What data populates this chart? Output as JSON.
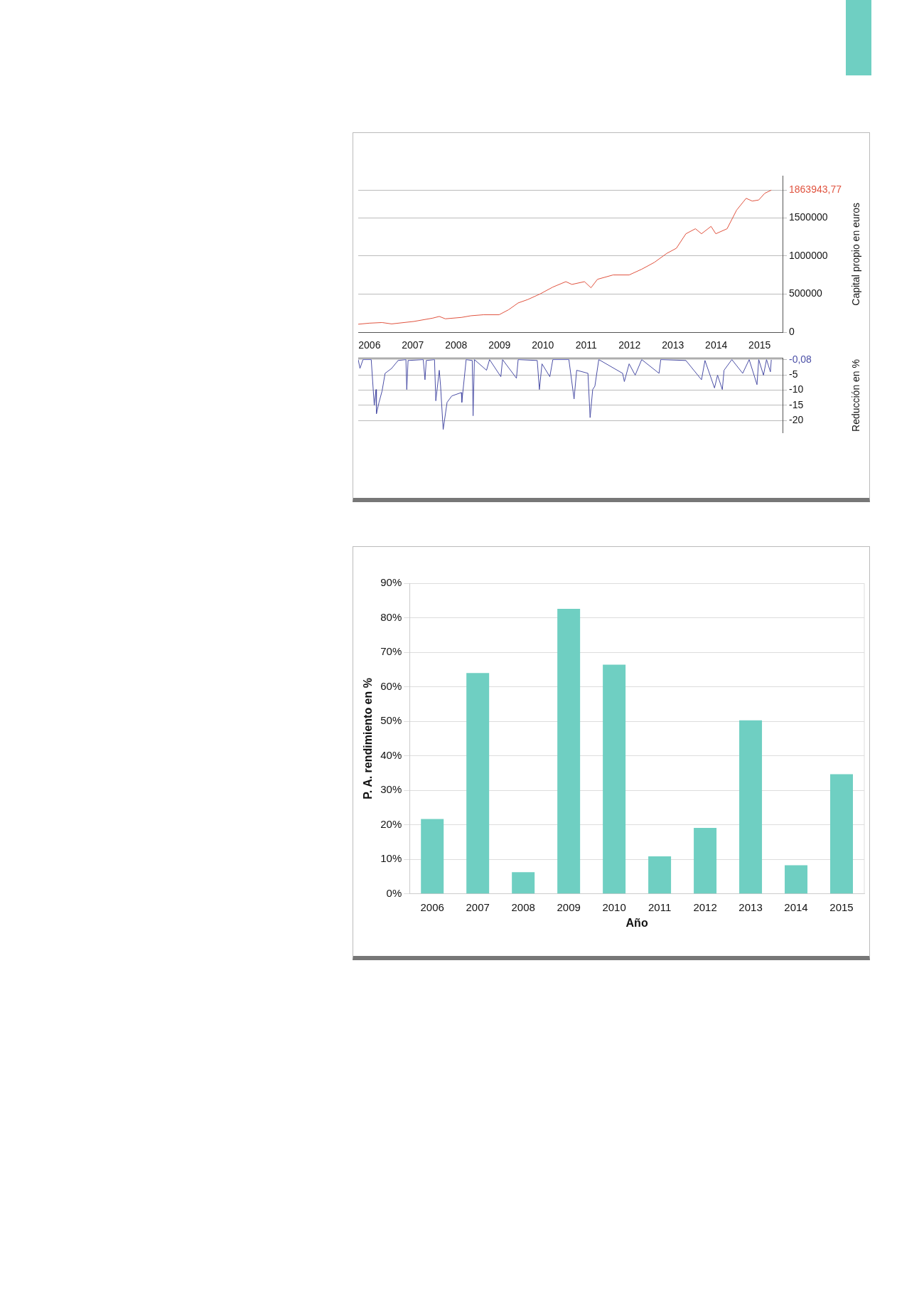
{
  "chart_data": [
    {
      "type": "line",
      "ylabel": "Capital propio en euros",
      "xlim": [
        2005.74,
        2015.53
      ],
      "xticks": [
        2006,
        2007,
        2008,
        2009,
        2010,
        2011,
        2012,
        2013,
        2014,
        2015
      ],
      "ylim": [
        0,
        2050000
      ],
      "yticks": [
        0,
        500000,
        1000000,
        1500000,
        {
          "value": 1863943.77,
          "label": "1863943,77"
        }
      ],
      "grid": "y",
      "series": [
        {
          "color": "#e0533f",
          "x": [
            2005.74,
            2006,
            2006.29,
            2006.51,
            2007.02,
            2007.46,
            2007.61,
            2007.75,
            2008.12,
            2008.34,
            2008.63,
            2008.99,
            2009.21,
            2009.43,
            2009.65,
            2009.94,
            2010.23,
            2010.53,
            2010.67,
            2010.96,
            2011.11,
            2011.26,
            2011.62,
            2011.99,
            2012.28,
            2012.57,
            2012.86,
            2013.08,
            2013.3,
            2013.52,
            2013.66,
            2013.88,
            2013.99,
            2014.25,
            2014.47,
            2014.69,
            2014.83,
            2014.98,
            2015.12,
            2015.27
          ],
          "values": [
            106000,
            120000,
            128000,
            110000,
            142000,
            186000,
            208000,
            177000,
            195000,
            217000,
            230000,
            230000,
            296000,
            385000,
            429000,
            504000,
            593000,
            664000,
            628000,
            664000,
            584000,
            695000,
            752000,
            752000,
            827000,
            916000,
            1035000,
            1102000,
            1292000,
            1358000,
            1292000,
            1389000,
            1292000,
            1358000,
            1602000,
            1757000,
            1721000,
            1735000,
            1823000,
            1863943.77
          ]
        }
      ]
    },
    {
      "type": "line",
      "ylabel": "Reducción en %",
      "xlim": [
        2005.74,
        2015.53
      ],
      "xticks": [
        2006,
        2007,
        2008,
        2009,
        2010,
        2011,
        2012,
        2013,
        2014,
        2015
      ],
      "ylim": [
        -24,
        0.5
      ],
      "yticks": [
        {
          "value": -0.08,
          "label": "-0,08"
        },
        -5,
        -10,
        -15,
        -20
      ],
      "grid": "y",
      "tick_labels": "y",
      "series": [
        {
          "color": "#4b4fa6",
          "x": [
            2005.74,
            2005.78,
            2005.85,
            2006.04,
            2006.11,
            2006.15,
            2006.16,
            2006.22,
            2006.29,
            2006.36,
            2006.51,
            2006.66,
            2006.84,
            2006.86,
            2006.89,
            2007.24,
            2007.28,
            2007.31,
            2007.5,
            2007.53,
            2007.61,
            2007.64,
            2007.7,
            2007.79,
            2007.9,
            2008.12,
            2008.13,
            2008.23,
            2008.37,
            2008.39,
            2008.42,
            2008.7,
            2008.77,
            2009.03,
            2009.07,
            2009.39,
            2009.43,
            2009.87,
            2009.92,
            2009.98,
            2010.16,
            2010.23,
            2010.6,
            2010.72,
            2010.78,
            2011.04,
            2011.09,
            2011.15,
            2011.2,
            2011.29,
            2011.84,
            2011.88,
            2011.99,
            2012.13,
            2012.28,
            2012.68,
            2012.72,
            2013.3,
            2013.66,
            2013.74,
            2013.96,
            2014.03,
            2014.14,
            2014.18,
            2014.36,
            2014.61,
            2014.76,
            2014.94,
            2014.98,
            2015.09,
            2015.16,
            2015.25,
            2015.27
          ],
          "values": [
            0,
            -2.9,
            0,
            0,
            -15,
            -9.8,
            -17.7,
            -14,
            -10.3,
            -4.5,
            -2.9,
            -0.3,
            0,
            -9.8,
            -0.3,
            0,
            -6.6,
            -0.3,
            0,
            -13.5,
            -3.5,
            -8.7,
            -22.9,
            -14,
            -11.9,
            -10.8,
            -14,
            0,
            -0.3,
            -18.4,
            0,
            -3.5,
            0,
            -5.6,
            0,
            -6.1,
            0,
            -0.3,
            -9.8,
            -1.4,
            -5.6,
            0,
            0,
            -12.9,
            -3.5,
            -4.5,
            -19,
            -9.8,
            -8.7,
            0,
            -4.5,
            -7.2,
            -1.4,
            -5.1,
            0,
            -4.5,
            0,
            -0.3,
            -6.6,
            -0.3,
            -9.3,
            -5.1,
            -9.8,
            -3.5,
            0,
            -4.5,
            0,
            -8.2,
            0,
            -5.1,
            0,
            -4,
            -0.08
          ]
        }
      ]
    },
    {
      "type": "bar",
      "xlabel": "Año",
      "ylabel": "P. A. rendimiento en %",
      "categories": [
        "2006",
        "2007",
        "2008",
        "2009",
        "2010",
        "2011",
        "2012",
        "2013",
        "2014",
        "2015"
      ],
      "values": [
        21.7,
        64,
        6.3,
        82.6,
        66.4,
        10.9,
        19.1,
        50.3,
        8.3,
        34.7
      ],
      "color": "#6fcfc2",
      "ylim": [
        0,
        90
      ],
      "yticks": [
        {
          "value": 0,
          "label": "0%"
        },
        {
          "value": 10,
          "label": "10%"
        },
        {
          "value": 20,
          "label": "20%"
        },
        {
          "value": 30,
          "label": "30%"
        },
        {
          "value": 40,
          "label": "40%"
        },
        {
          "value": 50,
          "label": "50%"
        },
        {
          "value": 60,
          "label": "60%"
        },
        {
          "value": 70,
          "label": "70%"
        },
        {
          "value": 80,
          "label": "80%"
        },
        {
          "value": 90,
          "label": "90%"
        }
      ],
      "grid": "y"
    }
  ]
}
